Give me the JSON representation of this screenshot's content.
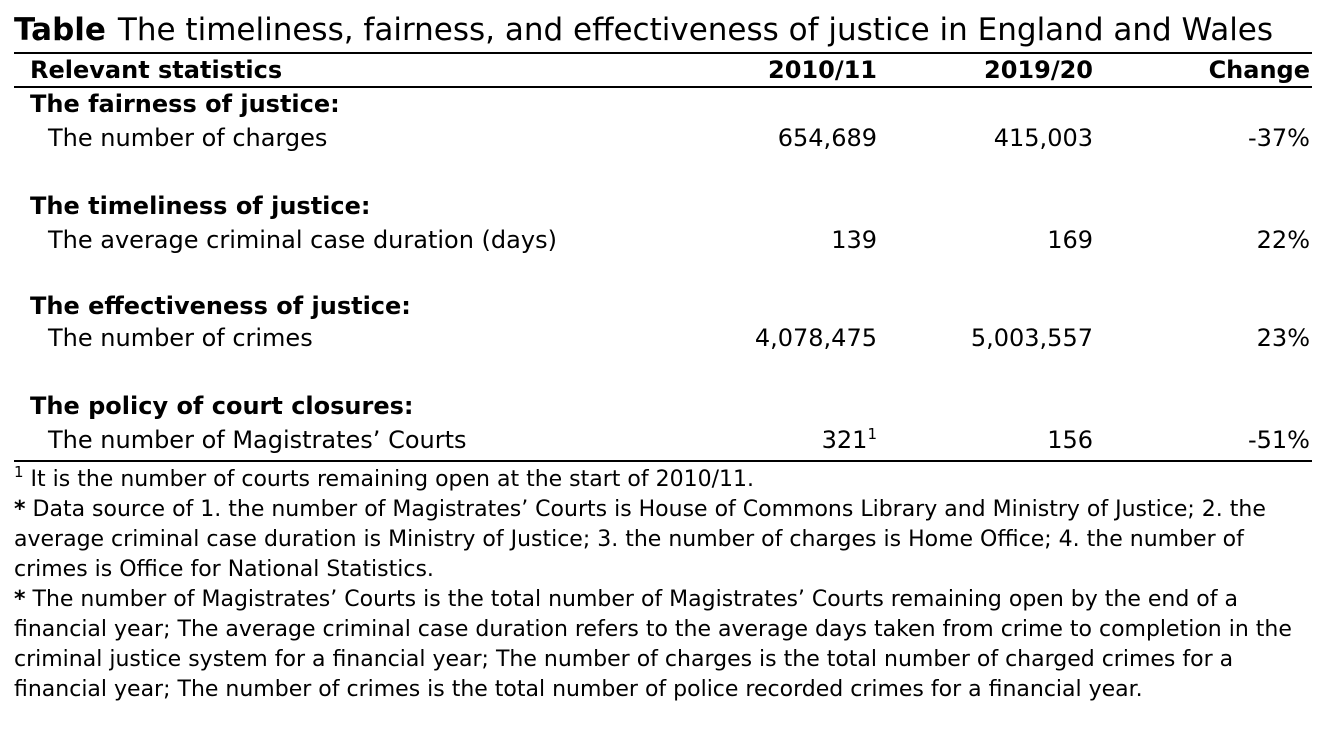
{
  "caption": {
    "lead": "Table",
    "text": "The timeliness, fairness, and effectiveness of justice in England and Wales"
  },
  "table": {
    "headers": [
      "Relevant statistics",
      "2010/11",
      "2019/20",
      "Change"
    ],
    "groups": [
      {
        "heading": "The fairness of justice:",
        "label": "The number of charges",
        "v2010": "654,689",
        "v2019": "415,003",
        "change": "-37%"
      },
      {
        "heading": "The timeliness of justice:",
        "label": "The average criminal case duration (days)",
        "v2010": "139",
        "v2019": "169",
        "change": "22%"
      },
      {
        "heading": "The effectiveness of justice:",
        "label": "The number of crimes",
        "v2010": "4,078,475",
        "v2019": "5,003,557",
        "change": "23%"
      },
      {
        "heading": "The policy of court closures:",
        "label": "The number of Magistrates’ Courts",
        "v2010": "321",
        "v2010_sup": "1",
        "v2019": "156",
        "change": "-51%"
      }
    ]
  },
  "footnotes": {
    "note1_marker": "1",
    "note1": "It is the number of courts remaining open at the start of 2010/11.",
    "source_marker": "*",
    "source": "Data source of 1. the number of Magistrates’ Courts is House of Commons Library and Ministry of Justice; 2. the average criminal case duration is Ministry of Justice; 3. the number of charges is Home Office; 4. the number of crimes is Office for National Statistics.",
    "definitions_marker": "*",
    "definitions": "The number of Magistrates’ Courts is the total number of Magistrates’ Courts remaining open by the end of a financial year; The average criminal case duration refers to the average days taken from crime to completion in the criminal justice system for a financial year; The number of charges is the total number of charged crimes for a financial year; The number of crimes is the total number of police recorded crimes for a financial year."
  }
}
